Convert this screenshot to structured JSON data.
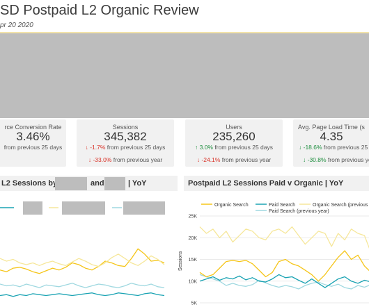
{
  "header": {
    "title": "SD Postpaid L2 Organic Review",
    "date_range": "pr 20 2020"
  },
  "kpis": [
    {
      "label": "rce Conversion Rate",
      "value": "3.46%",
      "line1": "from previous 25 days",
      "line1_delta": "",
      "line2": "",
      "line2_delta": ""
    },
    {
      "label": "Sessions",
      "value": "345,382",
      "line1_delta": "↓ -1.7%",
      "line1": "from previous 25 days",
      "line2_delta": "↓ -33.0%",
      "line2": "from previous year"
    },
    {
      "label": "Users",
      "value": "235,260",
      "line1_delta": "↑ 3.0%",
      "line1": "from previous 25 days",
      "line2_delta": "↓ -24.1%",
      "line2": "from previous year"
    },
    {
      "label": "Avg. Page Load Time (s",
      "value": "4.35",
      "line1_delta": "↓ -18.6%",
      "line1": "from previous 25",
      "line2_delta": "↓ -30.8%",
      "line2": "from previous ye"
    }
  ],
  "colors": {
    "negative": "#d93025",
    "positive": "#1e8e3e",
    "organic": "#f5c518",
    "paid": "#1aa3b3",
    "organic_prev": "#f6e79a",
    "paid_prev": "#9fd8e0"
  },
  "left_panel": {
    "title_a": "L2 Sessions by",
    "title_b": "and",
    "title_c": "| YoY"
  },
  "right_panel": {
    "title": "Postpaid L2 Sessions Paid v Organic | YoY"
  },
  "chart_data": [
    {
      "type": "line",
      "title": "Postpaid L2 Sessions Paid v Organic | YoY",
      "ylabel": "Sessions",
      "yticks": [
        "25K",
        "20K",
        "15K",
        "10K",
        "5K"
      ],
      "ylim": [
        5000,
        25000
      ],
      "grid": true,
      "legend_position": "top",
      "series": [
        {
          "name": "Organic Search",
          "color": "#f5c518",
          "values": [
            12000,
            11000,
            11500,
            13000,
            14500,
            14800,
            14500,
            14800,
            14000,
            12500,
            11000,
            12000,
            14500,
            15000,
            14000,
            13500,
            12500,
            11500,
            10000,
            11500,
            13500,
            15500,
            17000,
            15000,
            16000,
            13500,
            12000
          ]
        },
        {
          "name": "Paid Search",
          "color": "#1aa3b3",
          "values": [
            10000,
            10500,
            11000,
            10200,
            10800,
            10500,
            11200,
            10300,
            10800,
            10000,
            9800,
            10500,
            11500,
            10800,
            11000,
            10200,
            9500,
            10500,
            9500,
            8500,
            9500,
            10500,
            11000,
            10000,
            9500,
            10200,
            9800
          ]
        },
        {
          "name": "Organic Search (previous",
          "color": "#f6e79a",
          "values": [
            22500,
            21000,
            22000,
            20000,
            21500,
            19000,
            20500,
            22000,
            21500,
            20000,
            19500,
            21500,
            22000,
            21000,
            22500,
            20500,
            18500,
            20000,
            21500,
            21000,
            18000,
            21000,
            19500,
            22000,
            21000,
            20500,
            16500
          ]
        },
        {
          "name": "Paid Search (previous year)",
          "color": "#9fd8e0",
          "values": [
            11500,
            11000,
            10500,
            10000,
            9000,
            9500,
            9000,
            8800,
            9200,
            10200,
            9600,
            9000,
            8600,
            9000,
            8700,
            8200,
            9000,
            9500,
            9800,
            9200,
            8800,
            9300,
            8500,
            8200,
            9000,
            8600,
            9200
          ]
        }
      ]
    },
    {
      "type": "line",
      "title": "L2 Sessions by | YoY",
      "ylim": [
        0,
        1
      ],
      "grid": false,
      "series": [
        {
          "color": "#f5c518",
          "values": [
            0.42,
            0.4,
            0.44,
            0.45,
            0.43,
            0.4,
            0.38,
            0.41,
            0.44,
            0.42,
            0.45,
            0.5,
            0.48,
            0.44,
            0.42,
            0.46,
            0.52,
            0.5,
            0.47,
            0.46,
            0.55,
            0.66,
            0.6,
            0.52,
            0.53,
            0.5
          ]
        },
        {
          "color": "#f6e79a",
          "values": [
            0.55,
            0.52,
            0.54,
            0.5,
            0.48,
            0.5,
            0.47,
            0.5,
            0.52,
            0.49,
            0.47,
            0.51,
            0.55,
            0.52,
            0.48,
            0.46,
            0.5,
            0.56,
            0.6,
            0.55,
            0.5,
            0.47,
            0.52,
            0.58,
            0.54,
            0.48
          ]
        },
        {
          "color": "#1aa3b3",
          "values": [
            0.13,
            0.14,
            0.12,
            0.14,
            0.13,
            0.15,
            0.14,
            0.13,
            0.14,
            0.15,
            0.14,
            0.13,
            0.14,
            0.15,
            0.16,
            0.14,
            0.13,
            0.14,
            0.16,
            0.15,
            0.14,
            0.13,
            0.15,
            0.16,
            0.14,
            0.13
          ]
        },
        {
          "color": "#9fd8e0",
          "values": [
            0.26,
            0.24,
            0.25,
            0.23,
            0.26,
            0.24,
            0.22,
            0.25,
            0.24,
            0.23,
            0.25,
            0.27,
            0.24,
            0.22,
            0.24,
            0.26,
            0.25,
            0.23,
            0.22,
            0.24,
            0.27,
            0.25,
            0.24,
            0.26,
            0.23,
            0.22
          ]
        }
      ]
    }
  ]
}
